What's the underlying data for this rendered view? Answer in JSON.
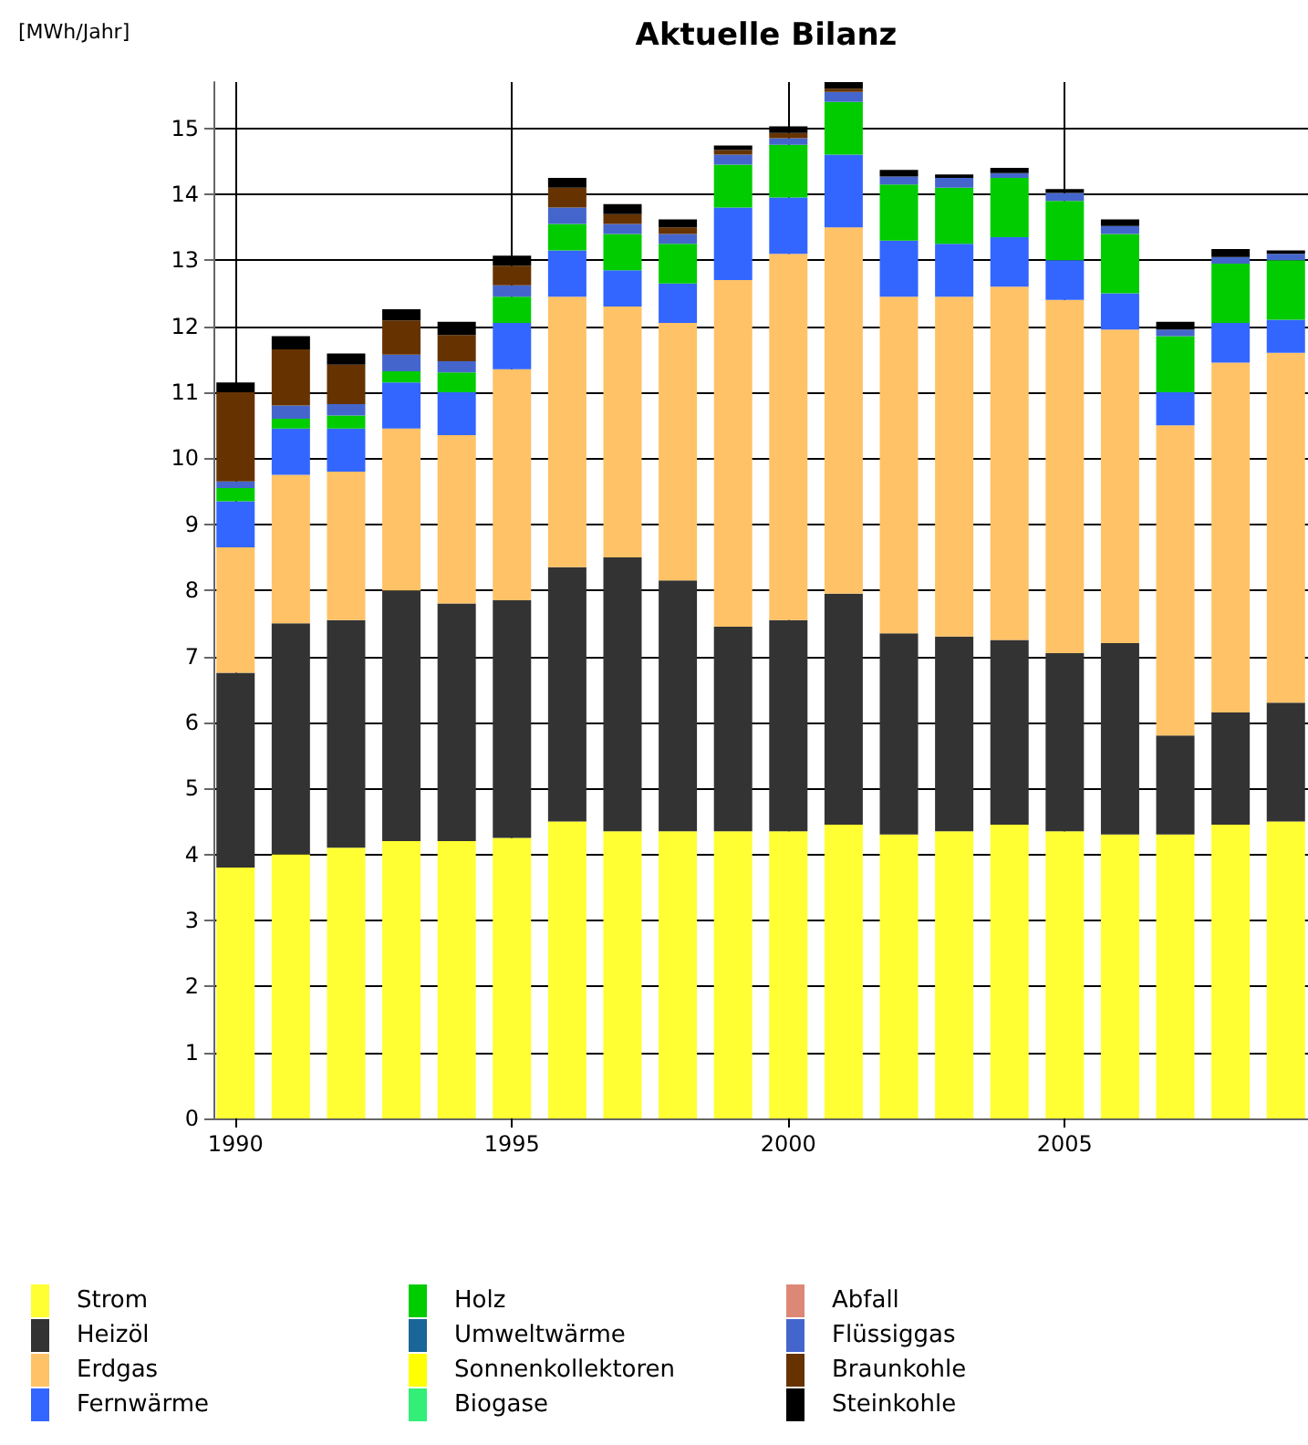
{
  "chart_data": {
    "type": "bar",
    "title": "Aktuelle Bilanz",
    "ylabel": "[MWh/Jahr]",
    "stacked": true,
    "x": [
      1990,
      1991,
      1992,
      1993,
      1994,
      1995,
      1996,
      1997,
      1998,
      1999,
      2000,
      2001,
      2002,
      2003,
      2004,
      2005,
      2006,
      2007,
      2008,
      2009
    ],
    "xlim": [
      1989.6,
      2009.4
    ],
    "xticks": [
      1990,
      1995,
      2000,
      2005
    ],
    "ylim": [
      0,
      15.7
    ],
    "yticks": [
      0,
      1,
      2,
      3,
      4,
      5,
      6,
      7,
      8,
      9,
      10,
      11,
      12,
      13,
      14,
      15
    ],
    "grid": true,
    "legend": "bottom",
    "series": [
      {
        "name": "Strom",
        "color": "#ffff33",
        "values": [
          3.8,
          4.0,
          4.1,
          4.2,
          4.2,
          4.25,
          4.5,
          4.35,
          4.35,
          4.35,
          4.35,
          4.45,
          4.3,
          4.35,
          4.45,
          4.35,
          4.3,
          4.3,
          4.45,
          4.5
        ]
      },
      {
        "name": "Heizöl",
        "color": "#333333",
        "values": [
          2.95,
          3.5,
          3.45,
          3.8,
          3.6,
          3.6,
          3.85,
          4.15,
          3.8,
          3.1,
          3.2,
          3.5,
          3.05,
          2.95,
          2.8,
          2.7,
          2.9,
          1.5,
          1.7,
          1.8
        ]
      },
      {
        "name": "Erdgas",
        "color": "#ffc266",
        "values": [
          1.9,
          2.25,
          2.25,
          2.45,
          2.55,
          3.5,
          4.1,
          3.8,
          3.9,
          5.25,
          5.55,
          5.55,
          5.1,
          5.15,
          5.35,
          5.35,
          4.75,
          4.7,
          5.3,
          5.3
        ]
      },
      {
        "name": "Fernwärme",
        "color": "#3366ff",
        "values": [
          0.7,
          0.7,
          0.65,
          0.7,
          0.65,
          0.7,
          0.7,
          0.55,
          0.6,
          1.1,
          0.85,
          1.1,
          0.85,
          0.8,
          0.75,
          0.6,
          0.55,
          0.5,
          0.6,
          0.5
        ]
      },
      {
        "name": "Holz",
        "color": "#00cc00",
        "values": [
          0.2,
          0.15,
          0.2,
          0.17,
          0.3,
          0.4,
          0.4,
          0.55,
          0.6,
          0.65,
          0.8,
          0.8,
          0.85,
          0.85,
          0.9,
          0.9,
          0.9,
          0.85,
          0.9,
          0.9
        ]
      },
      {
        "name": "Umweltwärme",
        "color": "#1a6699",
        "values": [
          null,
          null,
          null,
          null,
          null,
          null,
          null,
          null,
          null,
          null,
          null,
          null,
          null,
          null,
          null,
          null,
          null,
          null,
          null,
          null
        ]
      },
      {
        "name": "Sonnenkollektoren",
        "color": "#ffff00",
        "values": [
          null,
          null,
          null,
          null,
          null,
          null,
          null,
          null,
          null,
          null,
          null,
          null,
          null,
          null,
          null,
          null,
          null,
          null,
          null,
          null
        ]
      },
      {
        "name": "Biogase",
        "color": "#33ee77",
        "values": [
          null,
          null,
          null,
          null,
          null,
          null,
          null,
          null,
          null,
          null,
          null,
          null,
          null,
          null,
          null,
          null,
          null,
          null,
          null,
          null
        ]
      },
      {
        "name": "Abfall",
        "color": "#dd8877",
        "values": [
          null,
          null,
          null,
          null,
          null,
          null,
          null,
          null,
          null,
          null,
          null,
          null,
          null,
          null,
          null,
          null,
          null,
          null,
          null,
          null
        ]
      },
      {
        "name": "Flüssiggas",
        "color": "#4466cc",
        "values": [
          0.1,
          0.2,
          0.17,
          0.25,
          0.17,
          0.17,
          0.25,
          0.15,
          0.15,
          0.15,
          0.1,
          0.15,
          0.12,
          0.15,
          0.07,
          0.12,
          0.12,
          0.1,
          0.1,
          0.1
        ]
      },
      {
        "name": "Braunkohle",
        "color": "#663300",
        "values": [
          1.35,
          0.85,
          0.6,
          0.52,
          0.4,
          0.3,
          0.3,
          0.15,
          0.1,
          0.07,
          0.08,
          0.05,
          null,
          null,
          null,
          null,
          null,
          null,
          null,
          null
        ]
      },
      {
        "name": "Steinkohle",
        "color": "#000000",
        "values": [
          0.15,
          0.2,
          0.17,
          0.17,
          0.2,
          0.15,
          0.15,
          0.15,
          0.12,
          0.07,
          0.1,
          0.1,
          0.1,
          0.05,
          0.08,
          0.06,
          0.1,
          0.12,
          0.12,
          0.05
        ]
      }
    ]
  }
}
